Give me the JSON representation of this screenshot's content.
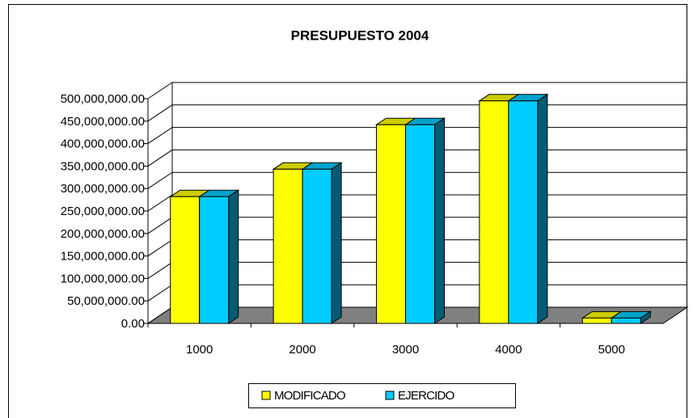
{
  "chart_data": {
    "type": "bar3d",
    "title": "PRESUPUESTO 2004",
    "categories": [
      "1000",
      "2000",
      "3000",
      "4000",
      "5000"
    ],
    "series": [
      {
        "name": "MODIFICADO",
        "color": "#ffff00",
        "values": [
          282000000,
          343000000,
          442000000,
          495000000,
          12000000
        ]
      },
      {
        "name": "EJERCIDO",
        "color": "#00ccff",
        "values": [
          282000000,
          343000000,
          442000000,
          495000000,
          12000000
        ]
      }
    ],
    "ylim": [
      0,
      500000000
    ],
    "yticks": [
      {
        "value": 0,
        "label": "0.00"
      },
      {
        "value": 50000000,
        "label": "50,000,000.00"
      },
      {
        "value": 100000000,
        "label": "100,000,000.00"
      },
      {
        "value": 150000000,
        "label": "150,000,000.00"
      },
      {
        "value": 200000000,
        "label": "200,000,000.00"
      },
      {
        "value": 250000000,
        "label": "250,000,000.00"
      },
      {
        "value": 300000000,
        "label": "300,000,000.00"
      },
      {
        "value": 350000000,
        "label": "350,000,000.00"
      },
      {
        "value": 400000000,
        "label": "400,000,000.00"
      },
      {
        "value": 450000000,
        "label": "450,000,000.00"
      },
      {
        "value": 500000000,
        "label": "500,000,000.00"
      }
    ],
    "grid": true,
    "legend": "bottom"
  }
}
